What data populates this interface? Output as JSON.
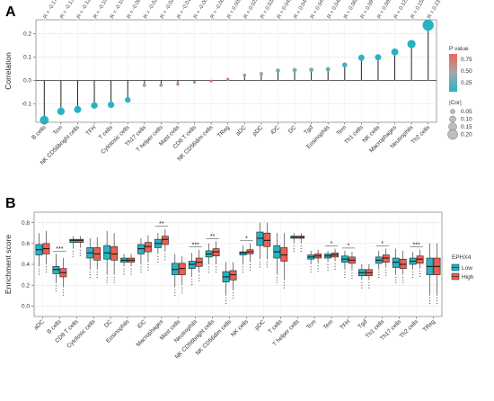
{
  "panels": {
    "a_letter": "A",
    "b_letter": "B"
  },
  "chart_data": [
    {
      "type": "scatter",
      "subtype": "lollipop",
      "xlabel": "",
      "ylabel": "Correlation",
      "ylim": [
        -0.18,
        0.26
      ],
      "yticks": [
        "-0.1",
        "0.0",
        "0.1",
        "0.2"
      ],
      "ytick_values": [
        -0.1,
        0.0,
        0.1,
        0.2
      ],
      "categories": [
        "B cells",
        "Tcm",
        "NK CD56bright cells",
        "TFH",
        "T cells",
        "Cytotoxic cells",
        "Th17 cells",
        "T helper cells",
        "Mast cells",
        "CD8 T cells",
        "NK CD56dim cells",
        "TReg",
        "aDC",
        "pDC",
        "iDC",
        "DC",
        "Tgd",
        "Eosinophils",
        "Tem",
        "Th1 cells",
        "NK cells",
        "Macrophages",
        "Neutrophils",
        "Th2 cells"
      ],
      "values": [
        -0.171,
        -0.133,
        -0.125,
        -0.108,
        -0.105,
        -0.084,
        -0.021,
        -0.021,
        -0.016,
        -0.008,
        -0.003,
        0.005,
        0.022,
        0.028,
        0.042,
        0.044,
        0.045,
        0.048,
        0.066,
        0.097,
        0.099,
        0.122,
        0.156,
        0.237
      ],
      "p_values": [
        0.0,
        0.0,
        0.0,
        0.005,
        0.01,
        0.05,
        0.65,
        0.65,
        0.7,
        0.8,
        0.93,
        0.88,
        0.6,
        0.5,
        0.3,
        0.3,
        0.28,
        0.25,
        0.1,
        0.02,
        0.02,
        0.005,
        0.0,
        0.0
      ],
      "r_labels": [
        "R = -0.171***",
        "R = -0.133**",
        "R = -0.125**",
        "R = -0.108*",
        "R = -0.105*",
        "R = -0.084ns",
        "R = -0.021ns",
        "R = -0.021ns",
        "R = -0.016ns",
        "R = -0.008ns",
        "R = -0.003ns",
        "R = 0.005ns",
        "R = 0.022ns",
        "R = 0.028ns",
        "R = 0.042ns",
        "R = 0.044ns",
        "R = 0.045ns",
        "R = 0.048ns",
        "R = 0.066ns",
        "R = 0.097*",
        "R = 0.099*",
        "R = 0.122**",
        "R = 0.156***",
        "R = 0.237***"
      ],
      "legend": {
        "color_title": "P value",
        "color_ticks": [
          "0.75",
          "0.50",
          "0.25"
        ],
        "size_title": "|Cor|",
        "size_ticks": [
          "0.05",
          "0.10",
          "0.15",
          "0.20"
        ],
        "low_color": "#27b3c4",
        "high_color": "#e8665a",
        "placement": "right"
      },
      "grid": true
    },
    {
      "type": "box",
      "xlabel": "",
      "ylabel": "Enrichment score",
      "ylim": [
        -0.1,
        0.9
      ],
      "yticks": [
        "0.0",
        "0.2",
        "0.4",
        "0.6",
        "0.8"
      ],
      "ytick_values": [
        0.0,
        0.2,
        0.4,
        0.6,
        0.8
      ],
      "categories": [
        "aDC",
        "B cells",
        "CD8 T cells",
        "Cytotoxic cells",
        "DC",
        "Eosinophils",
        "iDC",
        "Macrophages",
        "Mast cells",
        "Neutrophils",
        "NK CD56bright cells",
        "NK CD56dim cells",
        "NK cells",
        "pDC",
        "T cells",
        "T helper cells",
        "Tcm",
        "Tem",
        "TFH",
        "Tgd",
        "Th1 cells",
        "Th17 cells",
        "Th2 cells",
        "TReg"
      ],
      "significance": [
        "",
        "***",
        "",
        "",
        "",
        "",
        "",
        "**",
        "",
        "***",
        "**",
        "",
        "*",
        "",
        "",
        "",
        "",
        "*",
        "*",
        "",
        "*",
        "",
        "***",
        ""
      ],
      "legend": {
        "title": "EPHX4",
        "entries": [
          "Low",
          "High"
        ],
        "colors": [
          "#27b3c4",
          "#ee5f52"
        ],
        "placement": "right"
      },
      "series": [
        {
          "name": "Low",
          "boxes": [
            [
              0.38,
              0.49,
              0.54,
              0.59,
              0.7
            ],
            [
              0.22,
              0.31,
              0.35,
              0.38,
              0.5
            ],
            [
              0.55,
              0.61,
              0.63,
              0.64,
              0.67
            ],
            [
              0.35,
              0.46,
              0.51,
              0.56,
              0.65
            ],
            [
              0.3,
              0.45,
              0.51,
              0.58,
              0.72
            ],
            [
              0.38,
              0.42,
              0.44,
              0.46,
              0.5
            ],
            [
              0.4,
              0.5,
              0.55,
              0.59,
              0.65
            ],
            [
              0.5,
              0.56,
              0.6,
              0.64,
              0.7
            ],
            [
              0.18,
              0.3,
              0.35,
              0.41,
              0.5
            ],
            [
              0.28,
              0.36,
              0.4,
              0.43,
              0.51
            ],
            [
              0.4,
              0.47,
              0.5,
              0.53,
              0.6
            ],
            [
              0.1,
              0.23,
              0.28,
              0.33,
              0.42
            ],
            [
              0.4,
              0.49,
              0.51,
              0.52,
              0.58
            ],
            [
              0.45,
              0.58,
              0.65,
              0.71,
              0.8
            ],
            [
              0.3,
              0.46,
              0.52,
              0.58,
              0.7
            ],
            [
              0.6,
              0.65,
              0.66,
              0.67,
              0.7
            ],
            [
              0.4,
              0.45,
              0.47,
              0.49,
              0.53
            ],
            [
              0.42,
              0.46,
              0.48,
              0.5,
              0.53
            ],
            [
              0.35,
              0.42,
              0.45,
              0.48,
              0.53
            ],
            [
              0.25,
              0.29,
              0.32,
              0.35,
              0.4
            ],
            [
              0.35,
              0.41,
              0.44,
              0.47,
              0.53
            ],
            [
              0.3,
              0.37,
              0.42,
              0.46,
              0.55
            ],
            [
              0.35,
              0.4,
              0.43,
              0.46,
              0.52
            ],
            [
              0.1,
              0.3,
              0.38,
              0.46,
              0.6
            ]
          ]
        },
        {
          "name": "High",
          "boxes": [
            [
              0.4,
              0.5,
              0.55,
              0.6,
              0.72
            ],
            [
              0.18,
              0.28,
              0.32,
              0.36,
              0.46
            ],
            [
              0.56,
              0.61,
              0.63,
              0.64,
              0.67
            ],
            [
              0.35,
              0.44,
              0.5,
              0.56,
              0.66
            ],
            [
              0.3,
              0.44,
              0.5,
              0.57,
              0.7
            ],
            [
              0.38,
              0.42,
              0.44,
              0.46,
              0.5
            ],
            [
              0.42,
              0.52,
              0.57,
              0.61,
              0.68
            ],
            [
              0.52,
              0.59,
              0.64,
              0.67,
              0.74
            ],
            [
              0.2,
              0.3,
              0.36,
              0.41,
              0.48
            ],
            [
              0.32,
              0.38,
              0.42,
              0.46,
              0.54
            ],
            [
              0.4,
              0.48,
              0.52,
              0.55,
              0.62
            ],
            [
              0.15,
              0.25,
              0.3,
              0.34,
              0.42
            ],
            [
              0.42,
              0.5,
              0.52,
              0.54,
              0.6
            ],
            [
              0.45,
              0.57,
              0.63,
              0.7,
              0.8
            ],
            [
              0.25,
              0.43,
              0.49,
              0.56,
              0.7
            ],
            [
              0.6,
              0.65,
              0.66,
              0.67,
              0.7
            ],
            [
              0.41,
              0.46,
              0.48,
              0.5,
              0.54
            ],
            [
              0.43,
              0.47,
              0.49,
              0.51,
              0.55
            ],
            [
              0.34,
              0.41,
              0.44,
              0.47,
              0.52
            ],
            [
              0.25,
              0.29,
              0.32,
              0.35,
              0.4
            ],
            [
              0.37,
              0.42,
              0.46,
              0.49,
              0.55
            ],
            [
              0.3,
              0.36,
              0.4,
              0.45,
              0.53
            ],
            [
              0.36,
              0.41,
              0.45,
              0.48,
              0.54
            ],
            [
              0.1,
              0.3,
              0.38,
              0.46,
              0.6
            ]
          ]
        }
      ],
      "grid": true
    }
  ]
}
